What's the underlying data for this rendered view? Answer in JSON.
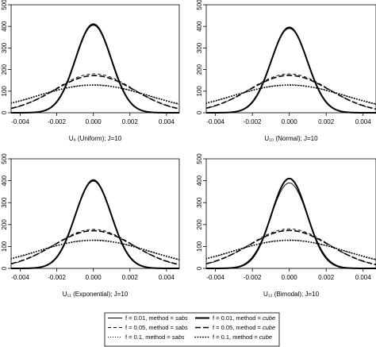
{
  "chart_data": [
    {
      "type": "line",
      "xlabel": "U₉  (Uniform);  J=10",
      "x_range": [
        -0.0045,
        0.0047
      ],
      "ylim": [
        0,
        500
      ],
      "x_ticks": [
        "-0.004",
        "-0.002",
        "0.000",
        "0.002",
        "0.004"
      ],
      "x_tick_values": [
        -0.004,
        -0.002,
        0,
        0.002,
        0.004
      ],
      "y_ticks": [
        "0",
        "100",
        "200",
        "300",
        "400",
        "500"
      ],
      "y_tick_values": [
        0,
        100,
        200,
        300,
        400,
        500
      ],
      "series": [
        {
          "f": 0.01,
          "method": "sabs",
          "center": 0.0,
          "sd": 0.00097,
          "peak": 405
        },
        {
          "f": 0.01,
          "method": "cube",
          "center": 0.0,
          "sd": 0.00098,
          "peak": 410
        },
        {
          "f": 0.05,
          "method": "sabs",
          "center": 5e-05,
          "sd": 0.00215,
          "peak": 180
        },
        {
          "f": 0.05,
          "method": "cube",
          "center": 5e-05,
          "sd": 0.0022,
          "peak": 172
        },
        {
          "f": 0.1,
          "method": "sabs",
          "center": 0.0,
          "sd": 0.003,
          "peak": 130
        },
        {
          "f": 0.1,
          "method": "cube",
          "center": 0.0,
          "sd": 0.0031,
          "peak": 128
        }
      ]
    },
    {
      "type": "line",
      "xlabel": "U₁₀  (Normal);  J=10",
      "x_range": [
        -0.0045,
        0.0047
      ],
      "ylim": [
        0,
        500
      ],
      "x_ticks": [
        "-0.004",
        "-0.002",
        "0.000",
        "0.002",
        "0.004"
      ],
      "x_tick_values": [
        -0.004,
        -0.002,
        0,
        0.002,
        0.004
      ],
      "y_ticks": [
        "0",
        "100",
        "200",
        "300",
        "400",
        "500"
      ],
      "y_tick_values": [
        0,
        100,
        200,
        300,
        400,
        500
      ],
      "series": [
        {
          "f": 0.01,
          "method": "sabs",
          "center": 0.0,
          "sd": 0.001,
          "peak": 390
        },
        {
          "f": 0.01,
          "method": "cube",
          "center": 0.0,
          "sd": 0.00098,
          "peak": 395
        },
        {
          "f": 0.05,
          "method": "sabs",
          "center": 0.0,
          "sd": 0.00215,
          "peak": 180
        },
        {
          "f": 0.05,
          "method": "cube",
          "center": 0.0,
          "sd": 0.0022,
          "peak": 173
        },
        {
          "f": 0.1,
          "method": "sabs",
          "center": 0.0,
          "sd": 0.003,
          "peak": 130
        },
        {
          "f": 0.1,
          "method": "cube",
          "center": 0.0,
          "sd": 0.0031,
          "peak": 128
        }
      ]
    },
    {
      "type": "line",
      "xlabel": "U₁₁  (Exponential);  J=10",
      "x_range": [
        -0.0045,
        0.0047
      ],
      "ylim": [
        0,
        500
      ],
      "x_ticks": [
        "-0.004",
        "-0.002",
        "0.000",
        "0.002",
        "0.004"
      ],
      "x_tick_values": [
        -0.004,
        -0.002,
        0,
        0.002,
        0.004
      ],
      "y_ticks": [
        "0",
        "100",
        "200",
        "300",
        "400",
        "500"
      ],
      "y_tick_values": [
        0,
        100,
        200,
        300,
        400,
        500
      ],
      "series": [
        {
          "f": 0.01,
          "method": "sabs",
          "center": 0.0,
          "sd": 0.00097,
          "peak": 405
        },
        {
          "f": 0.01,
          "method": "cube",
          "center": 0.0,
          "sd": 0.00099,
          "peak": 400
        },
        {
          "f": 0.05,
          "method": "sabs",
          "center": 0.0,
          "sd": 0.00215,
          "peak": 178
        },
        {
          "f": 0.05,
          "method": "cube",
          "center": 0.0,
          "sd": 0.0022,
          "peak": 172
        },
        {
          "f": 0.1,
          "method": "sabs",
          "center": 0.0,
          "sd": 0.003,
          "peak": 130
        },
        {
          "f": 0.1,
          "method": "cube",
          "center": 0.0,
          "sd": 0.0031,
          "peak": 128
        }
      ]
    },
    {
      "type": "line",
      "xlabel": "U₁₂  (Bimodal);  J=10",
      "x_range": [
        -0.0045,
        0.0047
      ],
      "ylim": [
        0,
        500
      ],
      "x_ticks": [
        "-0.004",
        "-0.002",
        "0.000",
        "0.002",
        "0.004"
      ],
      "x_tick_values": [
        -0.004,
        -0.002,
        0,
        0.002,
        0.004
      ],
      "y_ticks": [
        "0",
        "100",
        "200",
        "300",
        "400",
        "500"
      ],
      "y_tick_values": [
        0,
        100,
        200,
        300,
        400,
        500
      ],
      "series": [
        {
          "f": 0.01,
          "method": "sabs",
          "center": 0.0,
          "sd": 0.001,
          "peak": 390
        },
        {
          "f": 0.01,
          "method": "cube",
          "center": 0.0,
          "sd": 0.00096,
          "peak": 410
        },
        {
          "f": 0.05,
          "method": "sabs",
          "center": 0.0,
          "sd": 0.00215,
          "peak": 180
        },
        {
          "f": 0.05,
          "method": "cube",
          "center": 0.0,
          "sd": 0.0022,
          "peak": 173
        },
        {
          "f": 0.1,
          "method": "sabs",
          "center": 0.0,
          "sd": 0.003,
          "peak": 130
        },
        {
          "f": 0.1,
          "method": "cube",
          "center": 0.0,
          "sd": 0.0031,
          "peak": 128
        }
      ]
    }
  ],
  "legend": {
    "placement": "bottom-center",
    "entries": [
      {
        "f": 0.01,
        "method": "sabs",
        "prefix": "f = 0.01, method = ",
        "method_label": "sabs",
        "style": "solid-thin"
      },
      {
        "f": 0.01,
        "method": "cube",
        "prefix": "f = 0.01, method = ",
        "method_label": "cube",
        "style": "solid-thick"
      },
      {
        "f": 0.05,
        "method": "sabs",
        "prefix": "f = 0.05, method = ",
        "method_label": "sabs",
        "style": "dashed-thin"
      },
      {
        "f": 0.05,
        "method": "cube",
        "prefix": "f = 0.05, method = ",
        "method_label": "cube",
        "style": "dashed-thick"
      },
      {
        "f": 0.1,
        "method": "sabs",
        "prefix": "f = 0.1, method = ",
        "method_label": "sabs",
        "style": "dotted-thin"
      },
      {
        "f": 0.1,
        "method": "cube",
        "prefix": "f = 0.1, method = ",
        "method_label": "cube",
        "style": "dotted-thick"
      }
    ]
  },
  "colors": {
    "curves": "#000000",
    "baseline": "#9a9a9a",
    "axis": "#000000"
  }
}
